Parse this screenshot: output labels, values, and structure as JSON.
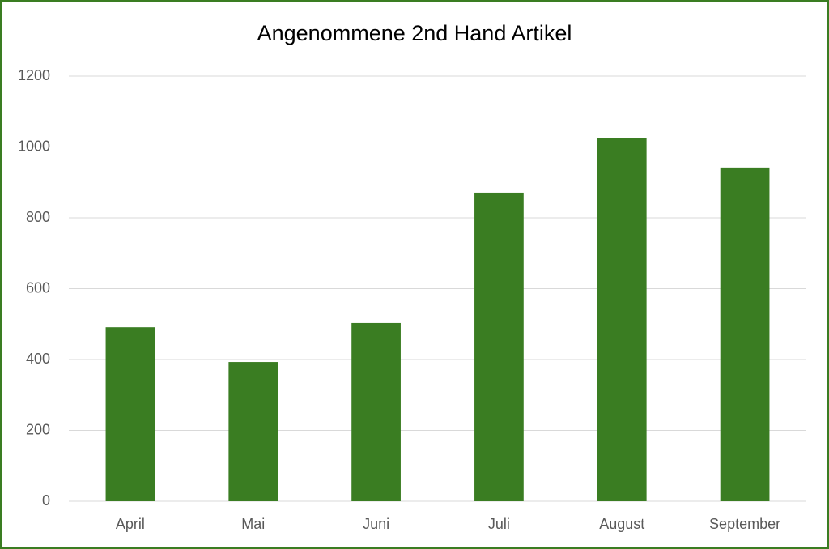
{
  "chart_data": {
    "type": "bar",
    "title": "Angenommene 2nd Hand Artikel",
    "categories": [
      "April",
      "Mai",
      "Juni",
      "Juli",
      "August",
      "September"
    ],
    "values": [
      491,
      393,
      503,
      871,
      1024,
      942
    ],
    "color": "#3a7d22",
    "ylim": [
      0,
      1200
    ],
    "yticks": [
      0,
      200,
      400,
      600,
      800,
      1000,
      1200
    ],
    "grid": true
  }
}
